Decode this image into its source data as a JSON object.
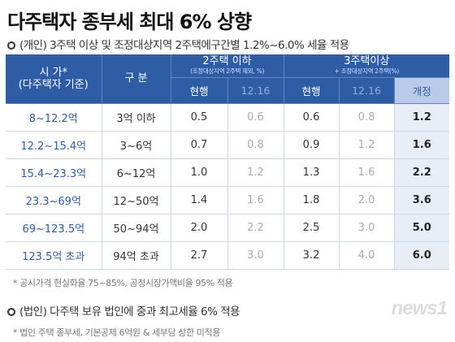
{
  "title": "다주택자 종부세 최대 6% 상향",
  "subtitle": "(개인) 3주택 이상 및 조정대상지역 2주택에구간별 1.2%~6.0% 세율 적용",
  "table": {
    "header": {
      "price_line1": "시 가*",
      "price_line2": "(다주택자 기준)",
      "gubun": "구 분",
      "group1_title": "2주택 이하",
      "group1_note": "(조정대상지역 2주택 제외, %)",
      "group2_title": "3주택이상",
      "group2_note": "+ 조정대상지역 2주택(%)",
      "col_current": "현행",
      "col_1216": "12.16",
      "col_current2": "현행",
      "col_1216_2": "12.16",
      "col_revised": "개정"
    },
    "rows": [
      {
        "range": "8~12.2억",
        "gubun": "3억 이하",
        "a_cur": "0.5",
        "a_new": "0.6",
        "b_cur": "0.6",
        "b_new": "0.8",
        "revised": "1.2"
      },
      {
        "range": "12.2~15.4억",
        "gubun": "3~6억",
        "a_cur": "0.7",
        "a_new": "0.8",
        "b_cur": "0.9",
        "b_new": "1.2",
        "revised": "1.6"
      },
      {
        "range": "15.4~23.3억",
        "gubun": "6~12억",
        "a_cur": "1.0",
        "a_new": "1.2",
        "b_cur": "1.3",
        "b_new": "1.6",
        "revised": "2.2"
      },
      {
        "range": "23.3~69억",
        "gubun": "12~50억",
        "a_cur": "1.4",
        "a_new": "1.6",
        "b_cur": "1.8",
        "b_new": "2.0",
        "revised": "3.6"
      },
      {
        "range": "69~123.5억",
        "gubun": "50~94억",
        "a_cur": "2.0",
        "a_new": "2.2",
        "b_cur": "2.5",
        "b_new": "3.0",
        "revised": "5.0"
      },
      {
        "range": "123.5억 초과",
        "gubun": "94억 초과",
        "a_cur": "2.7",
        "a_new": "3.0",
        "b_cur": "3.2",
        "b_new": "4.0",
        "revised": "6.0"
      }
    ]
  },
  "footnote1": "* 공시가격 현실화율 75~85%, 공정시장가액비율 95% 적용",
  "subtitle2": "(법인) 다주택 보유 법인에 중과 최고세율 6% 적용",
  "footnote2": "* 법인 주택 종부세, 기본공제 6억원 & 세부담 상한 미적용",
  "logo": "news1",
  "colors": {
    "header": "#2e5ca5",
    "range_text": "#2e5ca5",
    "revised_bg": "#e9eef6"
  }
}
